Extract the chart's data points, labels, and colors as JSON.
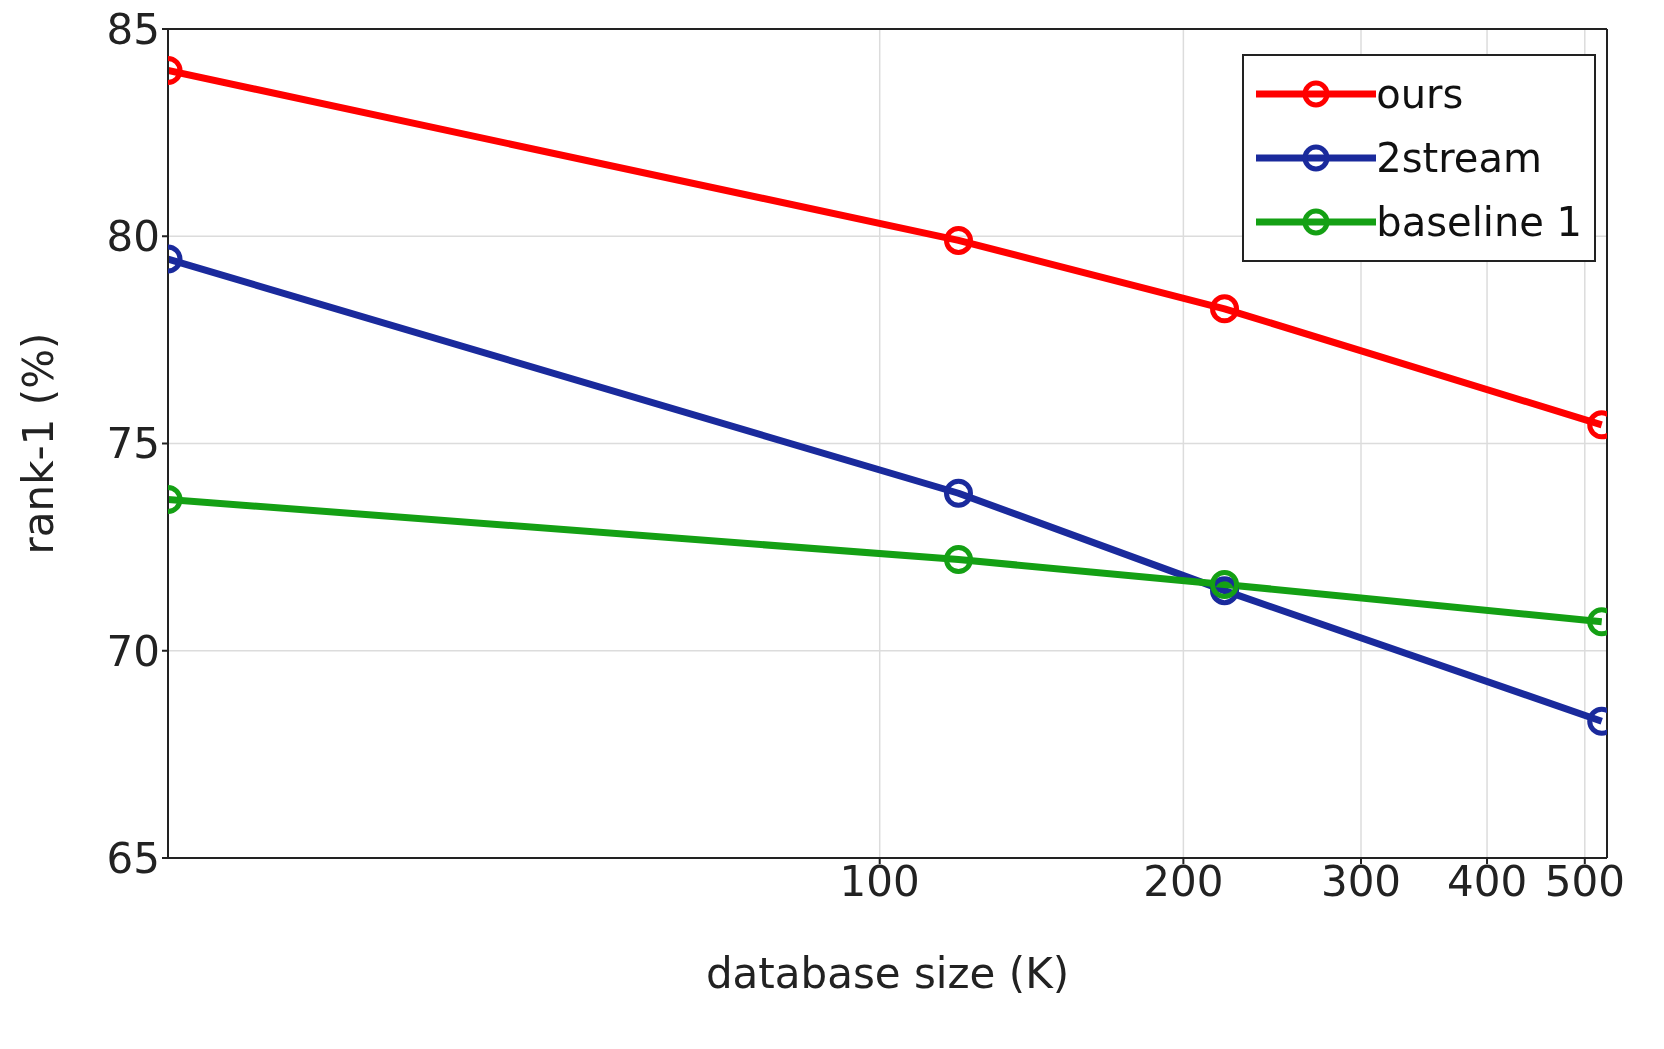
{
  "chart_data": {
    "type": "line",
    "xlabel": "database size (K)",
    "ylabel": "rank-1 (%)",
    "log": "x",
    "x": [
      19.7,
      119.7,
      219.7,
      519.7
    ],
    "xlim": [
      19.7,
      526
    ],
    "xticks": [
      100,
      200,
      300,
      400,
      500
    ],
    "ylim": [
      65,
      85
    ],
    "yticks": [
      65,
      70,
      75,
      80,
      85
    ],
    "grid": true,
    "legend": "top right",
    "marker": "circle",
    "line_style": "solid",
    "series": [
      {
        "name": "ours",
        "color": "#ff0000",
        "values": [
          84.0,
          79.9,
          78.25,
          75.45
        ]
      },
      {
        "name": "2stream",
        "color": "#1a2a9c",
        "values": [
          79.45,
          73.8,
          71.45,
          68.3
        ]
      },
      {
        "name": "baseline 1",
        "color": "#14a014",
        "values": [
          73.65,
          72.2,
          71.6,
          70.7
        ]
      }
    ]
  }
}
